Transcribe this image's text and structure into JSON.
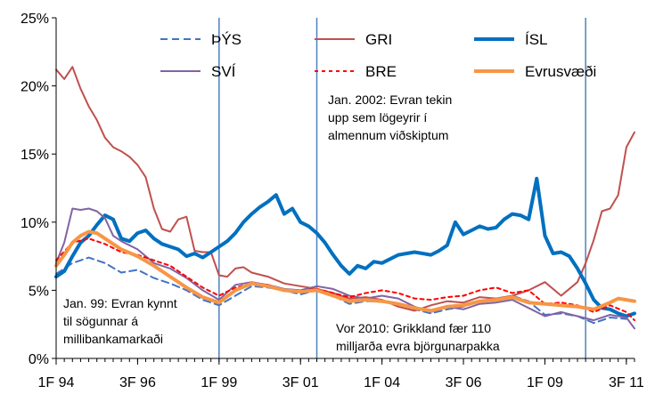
{
  "chart_data": {
    "type": "line",
    "title": "",
    "xlabel": "",
    "ylabel": "",
    "ylim": [
      0,
      25
    ],
    "yticks": [
      0,
      5,
      10,
      15,
      20,
      25
    ],
    "ytick_labels": [
      "0%",
      "5%",
      "10%",
      "15%",
      "20%",
      "25%"
    ],
    "x_start": 1994.0,
    "x_end": 2011.75,
    "xticks": [
      {
        "x": 1994.0,
        "label": "1F 94"
      },
      {
        "x": 1996.5,
        "label": "3F 96"
      },
      {
        "x": 1999.0,
        "label": "1F 99"
      },
      {
        "x": 2001.5,
        "label": "3F 01"
      },
      {
        "x": 2004.0,
        "label": "1F 04"
      },
      {
        "x": 2006.5,
        "label": "3F 06"
      },
      {
        "x": 2009.0,
        "label": "1F 09"
      },
      {
        "x": 2011.5,
        "label": "3F 11"
      }
    ],
    "grid": false,
    "legend_position": "top",
    "vertical_lines": [
      1999.0,
      2002.0,
      2010.25
    ],
    "annotations": [
      {
        "id": "euro-cash",
        "lines": [
          "Jan. 2002:  Evran tekin",
          "upp sem lögeyrir í",
          "almennum viðskiptum"
        ]
      },
      {
        "id": "euro-start",
        "lines": [
          "Jan. 99: Evran kynnt",
          "til sögunnar á",
          "millibankamarkaði"
        ]
      },
      {
        "id": "greece",
        "lines": [
          "Vor 2010: Grikkland fær 110",
          "milljarða evra björgunarpakka"
        ]
      }
    ],
    "series": [
      {
        "name": "ÞÝS",
        "color": "#4472C4",
        "dash": "8,5",
        "width": 2,
        "x": [
          1994.0,
          1994.5,
          1995.0,
          1995.5,
          1996.0,
          1996.5,
          1997.0,
          1997.5,
          1998.0,
          1998.5,
          1999.0,
          1999.5,
          2000.0,
          2000.5,
          2001.0,
          2001.5,
          2002.0,
          2002.5,
          2003.0,
          2003.5,
          2004.0,
          2004.5,
          2005.0,
          2005.5,
          2006.0,
          2006.5,
          2007.0,
          2007.5,
          2008.0,
          2008.5,
          2009.0,
          2009.5,
          2010.0,
          2010.5,
          2011.0,
          2011.5
        ],
        "values": [
          6.2,
          7.0,
          7.4,
          7.0,
          6.3,
          6.5,
          5.9,
          5.5,
          5.0,
          4.3,
          3.9,
          4.6,
          5.3,
          5.2,
          5.0,
          4.7,
          5.0,
          4.6,
          4.0,
          4.2,
          4.2,
          4.0,
          3.6,
          3.3,
          3.6,
          3.8,
          4.2,
          4.3,
          4.6,
          4.2,
          3.2,
          3.3,
          3.1,
          2.6,
          3.0,
          2.9
        ]
      },
      {
        "name": "GRI",
        "color": "#C0504D",
        "dash": "",
        "width": 2,
        "x": [
          1994.0,
          1994.25,
          1994.5,
          1994.75,
          1995.0,
          1995.25,
          1995.5,
          1995.75,
          1996.0,
          1996.25,
          1996.5,
          1996.75,
          1997.0,
          1997.25,
          1997.5,
          1997.75,
          1998.0,
          1998.25,
          1998.5,
          1998.75,
          1999.0,
          1999.25,
          1999.5,
          1999.75,
          2000.0,
          2000.5,
          2001.0,
          2001.5,
          2002.0,
          2002.5,
          2003.0,
          2003.5,
          2004.0,
          2004.5,
          2005.0,
          2005.5,
          2006.0,
          2006.5,
          2007.0,
          2007.5,
          2008.0,
          2008.5,
          2009.0,
          2009.5,
          2010.0,
          2010.25,
          2010.5,
          2010.75,
          2011.0,
          2011.25,
          2011.5,
          2011.75
        ],
        "values": [
          21.2,
          20.5,
          21.4,
          19.8,
          18.5,
          17.5,
          16.2,
          15.5,
          15.2,
          14.8,
          14.2,
          13.3,
          11.0,
          9.5,
          9.3,
          10.2,
          10.4,
          7.9,
          7.8,
          7.8,
          6.1,
          6.0,
          6.6,
          6.7,
          6.3,
          6.0,
          5.5,
          5.3,
          5.1,
          4.8,
          4.4,
          4.5,
          4.3,
          3.8,
          3.5,
          3.9,
          4.2,
          4.1,
          4.5,
          4.4,
          4.6,
          5.0,
          5.6,
          4.6,
          5.6,
          7.0,
          8.7,
          10.8,
          11.0,
          12.0,
          15.5,
          16.6
        ]
      },
      {
        "name": "ÍSL",
        "color": "#0070C0",
        "dash": "",
        "width": 4,
        "x": [
          1994.0,
          1994.25,
          1994.5,
          1994.75,
          1995.0,
          1995.25,
          1995.5,
          1995.75,
          1996.0,
          1996.25,
          1996.5,
          1996.75,
          1997.0,
          1997.25,
          1997.5,
          1997.75,
          1998.0,
          1998.25,
          1998.5,
          1998.75,
          1999.0,
          1999.25,
          1999.5,
          1999.75,
          2000.0,
          2000.25,
          2000.5,
          2000.75,
          2001.0,
          2001.25,
          2001.5,
          2001.75,
          2002.0,
          2002.25,
          2002.5,
          2002.75,
          2003.0,
          2003.25,
          2003.5,
          2003.75,
          2004.0,
          2004.25,
          2004.5,
          2004.75,
          2005.0,
          2005.25,
          2005.5,
          2005.75,
          2006.0,
          2006.25,
          2006.5,
          2006.75,
          2007.0,
          2007.25,
          2007.5,
          2007.75,
          2008.0,
          2008.25,
          2008.5,
          2008.75,
          2009.0,
          2009.25,
          2009.5,
          2009.75,
          2010.0,
          2010.25,
          2010.5,
          2010.75,
          2011.0,
          2011.25,
          2011.5,
          2011.75
        ],
        "values": [
          6.0,
          6.4,
          7.5,
          8.5,
          9.0,
          9.8,
          10.5,
          10.2,
          8.8,
          8.6,
          9.2,
          9.4,
          8.8,
          8.4,
          8.2,
          8.0,
          7.5,
          7.7,
          7.4,
          7.8,
          8.2,
          8.6,
          9.2,
          10.0,
          10.6,
          11.1,
          11.5,
          12.0,
          10.6,
          11.0,
          10.0,
          9.7,
          9.2,
          8.5,
          7.6,
          6.8,
          6.2,
          6.8,
          6.6,
          7.1,
          7.0,
          7.3,
          7.6,
          7.7,
          7.8,
          7.7,
          7.6,
          7.9,
          8.3,
          10.0,
          9.1,
          9.4,
          9.7,
          9.5,
          9.6,
          10.2,
          10.6,
          10.5,
          10.2,
          13.2,
          9.0,
          7.7,
          7.8,
          7.5,
          6.6,
          5.5,
          4.3,
          3.7,
          3.6,
          3.3,
          3.1,
          3.3
        ]
      },
      {
        "name": "SVÍ",
        "color": "#8064A2",
        "dash": "",
        "width": 2,
        "x": [
          1994.0,
          1994.25,
          1994.5,
          1994.75,
          1995.0,
          1995.25,
          1995.5,
          1995.75,
          1996.0,
          1996.5,
          1997.0,
          1997.5,
          1998.0,
          1998.5,
          1999.0,
          1999.5,
          2000.0,
          2000.5,
          2001.0,
          2001.5,
          2002.0,
          2002.5,
          2003.0,
          2003.5,
          2004.0,
          2004.5,
          2005.0,
          2005.5,
          2006.0,
          2006.5,
          2007.0,
          2007.5,
          2008.0,
          2008.5,
          2009.0,
          2009.5,
          2010.0,
          2010.5,
          2011.0,
          2011.5,
          2011.75
        ],
        "values": [
          7.0,
          8.5,
          11.0,
          10.9,
          11.0,
          10.8,
          10.3,
          9.0,
          8.6,
          8.0,
          7.0,
          6.6,
          5.9,
          5.0,
          4.3,
          5.4,
          5.6,
          5.4,
          5.1,
          5.0,
          5.3,
          5.1,
          4.6,
          4.4,
          4.6,
          4.4,
          3.8,
          3.4,
          3.8,
          3.6,
          4.0,
          4.1,
          4.3,
          3.7,
          3.1,
          3.4,
          3.1,
          2.8,
          3.2,
          3.0,
          2.2
        ]
      },
      {
        "name": "BRE",
        "color": "#FF0000",
        "dash": "4,4",
        "width": 2,
        "x": [
          1994.0,
          1994.5,
          1995.0,
          1995.5,
          1996.0,
          1996.5,
          1997.0,
          1997.5,
          1998.0,
          1998.5,
          1999.0,
          1999.5,
          2000.0,
          2000.5,
          2001.0,
          2001.5,
          2002.0,
          2002.5,
          2003.0,
          2003.5,
          2004.0,
          2004.5,
          2005.0,
          2005.5,
          2006.0,
          2006.5,
          2007.0,
          2007.5,
          2008.0,
          2008.5,
          2009.0,
          2009.5,
          2010.0,
          2010.5,
          2011.0,
          2011.5,
          2011.75
        ],
        "values": [
          7.2,
          8.5,
          8.8,
          8.4,
          7.8,
          7.6,
          7.2,
          6.8,
          6.0,
          5.2,
          4.6,
          5.2,
          5.5,
          5.4,
          5.0,
          5.0,
          5.1,
          4.8,
          4.5,
          4.8,
          5.0,
          4.8,
          4.4,
          4.3,
          4.5,
          4.6,
          5.0,
          5.2,
          4.8,
          5.0,
          4.0,
          4.1,
          3.9,
          3.4,
          3.9,
          3.4,
          2.8
        ]
      },
      {
        "name": "Evrusvæði",
        "color": "#F79646",
        "dash": "",
        "width": 4,
        "x": [
          1994.0,
          1994.25,
          1994.5,
          1994.75,
          1995.0,
          1995.25,
          1995.5,
          1995.75,
          1996.0,
          1996.5,
          1997.0,
          1997.5,
          1998.0,
          1998.5,
          1999.0,
          1999.5,
          2000.0,
          2000.5,
          2001.0,
          2001.5,
          2002.0,
          2002.5,
          2003.0,
          2003.5,
          2004.0,
          2004.5,
          2005.0,
          2005.5,
          2006.0,
          2006.5,
          2007.0,
          2007.5,
          2008.0,
          2008.5,
          2009.0,
          2009.5,
          2010.0,
          2010.5,
          2011.0,
          2011.25,
          2011.5,
          2011.75
        ],
        "values": [
          6.8,
          7.6,
          8.5,
          9.0,
          9.3,
          9.2,
          8.8,
          8.4,
          8.0,
          7.5,
          6.8,
          6.0,
          5.2,
          4.5,
          4.1,
          5.0,
          5.5,
          5.3,
          5.0,
          4.9,
          5.0,
          4.6,
          4.2,
          4.3,
          4.2,
          4.0,
          3.7,
          3.5,
          3.8,
          3.9,
          4.2,
          4.3,
          4.5,
          4.1,
          4.0,
          3.9,
          3.8,
          3.6,
          4.1,
          4.4,
          4.3,
          4.2
        ]
      }
    ]
  }
}
